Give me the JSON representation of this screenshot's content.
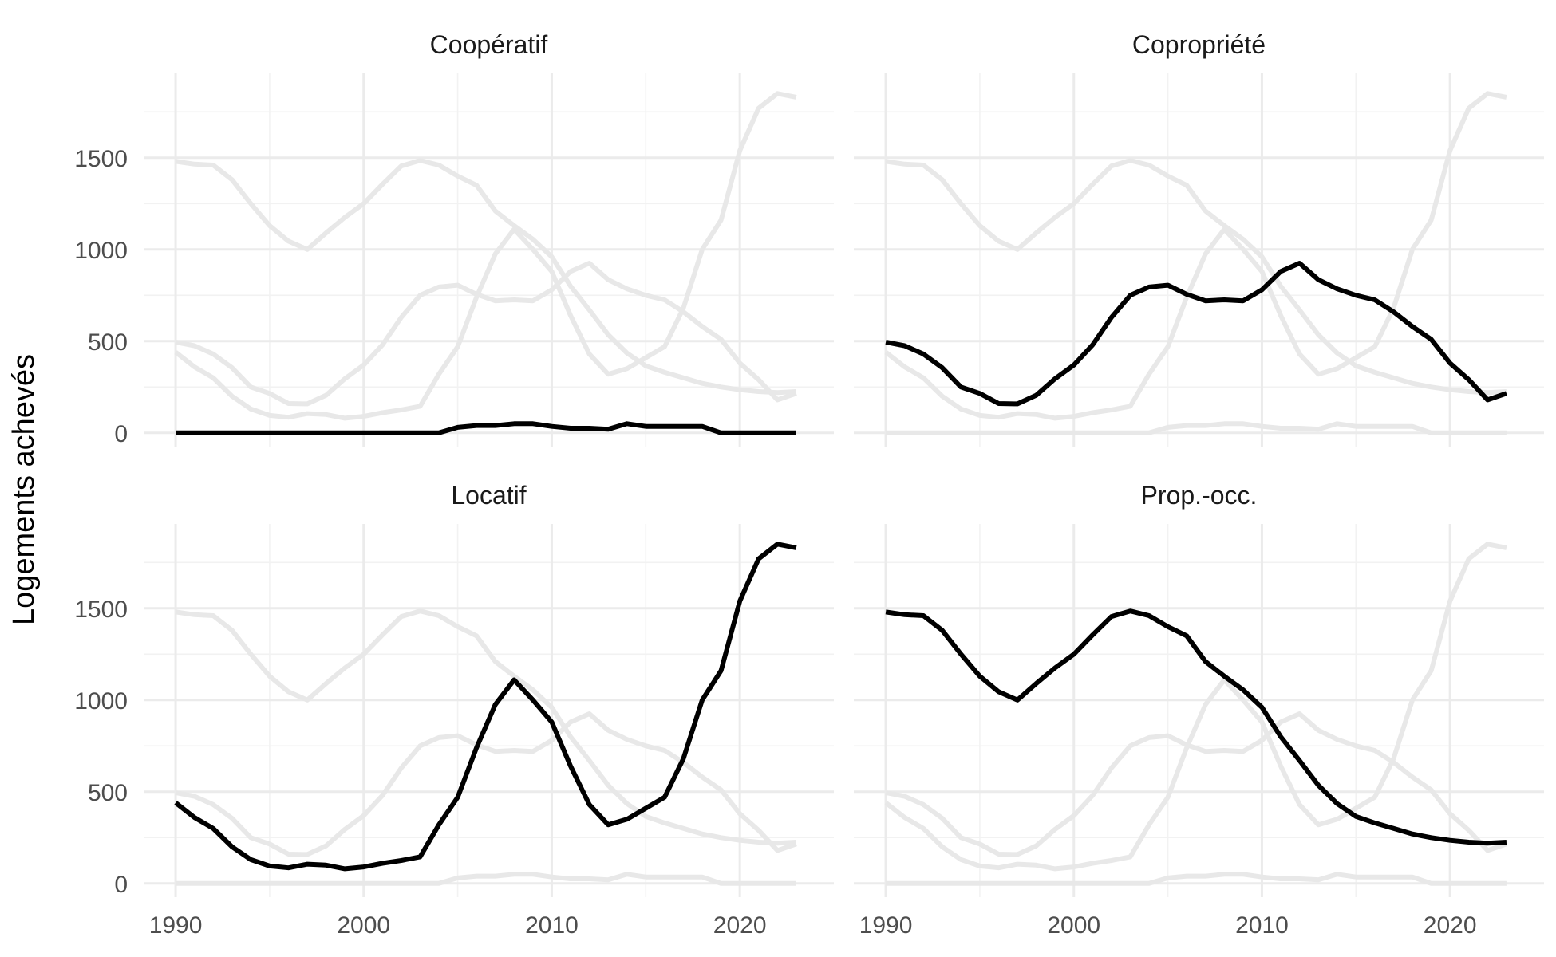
{
  "chart_data": {
    "type": "line",
    "layout": "facet-grid 2x2, shared axes, all series shown in light grey behind the highlighted facet series",
    "ylabel": "Logements achevés",
    "xlabel": "",
    "xlim": [
      1988.3,
      2025
    ],
    "ylim": [
      -75,
      1960
    ],
    "x_ticks": [
      1990,
      2000,
      2010,
      2020
    ],
    "x_tick_labels": [
      "1990",
      "2000",
      "2010",
      "2020"
    ],
    "y_ticks": [
      0,
      500,
      1000,
      1500
    ],
    "y_tick_labels": [
      "0",
      "500",
      "1000",
      "1500"
    ],
    "grid": true,
    "legend": "none",
    "highlight_color": "#000000",
    "background_series_color": "#e8e8e8",
    "x": [
      1990,
      1991,
      1992,
      1993,
      1994,
      1995,
      1996,
      1997,
      1998,
      1999,
      2000,
      2001,
      2002,
      2003,
      2004,
      2005,
      2006,
      2007,
      2008,
      2009,
      2010,
      2011,
      2012,
      2013,
      2014,
      2015,
      2016,
      2017,
      2018,
      2019,
      2020,
      2021,
      2022,
      2023
    ],
    "series": [
      {
        "name": "Coopératif",
        "values": [
          0,
          0,
          0,
          0,
          0,
          0,
          0,
          0,
          0,
          0,
          0,
          0,
          0,
          0,
          0,
          30,
          40,
          40,
          50,
          50,
          35,
          25,
          25,
          20,
          50,
          35,
          35,
          35,
          35,
          0,
          0,
          0,
          0,
          0
        ]
      },
      {
        "name": "Copropriété",
        "values": [
          495,
          475,
          430,
          355,
          250,
          215,
          160,
          158,
          205,
          295,
          370,
          480,
          630,
          750,
          795,
          805,
          755,
          720,
          725,
          720,
          780,
          880,
          925,
          835,
          785,
          750,
          725,
          660,
          580,
          510,
          380,
          290,
          180,
          215
        ]
      },
      {
        "name": "Locatif",
        "values": [
          440,
          360,
          300,
          200,
          130,
          95,
          85,
          105,
          100,
          80,
          90,
          110,
          125,
          145,
          320,
          470,
          740,
          975,
          1110,
          1000,
          880,
          640,
          430,
          320,
          350,
          410,
          470,
          680,
          1000,
          1160,
          1540,
          1770,
          1850,
          1830
        ]
      },
      {
        "name": "Prop.-occ.",
        "values": [
          1480,
          1465,
          1460,
          1380,
          1250,
          1130,
          1045,
          1000,
          1090,
          1175,
          1250,
          1355,
          1455,
          1485,
          1460,
          1400,
          1350,
          1210,
          1130,
          1055,
          960,
          800,
          670,
          535,
          435,
          365,
          330,
          300,
          270,
          250,
          235,
          225,
          220,
          225
        ]
      }
    ]
  }
}
